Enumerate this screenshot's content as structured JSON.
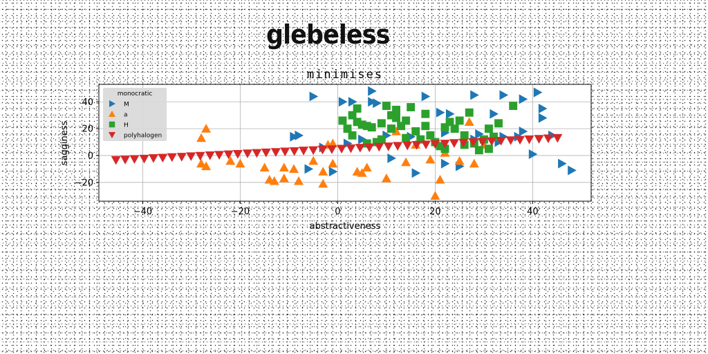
{
  "header": {
    "title": "glebeless"
  },
  "chart_data": {
    "type": "scatter",
    "title": "minimises",
    "xlabel": "abstractiveness",
    "ylabel": "sagginess",
    "xlim": [
      -49,
      52
    ],
    "ylim": [
      -34,
      53
    ],
    "xticks": [
      -40,
      -20,
      0,
      20,
      40
    ],
    "yticks": [
      -20,
      0,
      20,
      40
    ],
    "grid": true,
    "legend": {
      "title": "monocratic",
      "placement": "top-left"
    },
    "series": [
      {
        "name": "M",
        "marker": "triangle-right",
        "color": "#1f77b4",
        "points": [
          [
            -5,
            44
          ],
          [
            1,
            40
          ],
          [
            3,
            40
          ],
          [
            7,
            48
          ],
          [
            7,
            40
          ],
          [
            8,
            39
          ],
          [
            18,
            44
          ],
          [
            21,
            32
          ],
          [
            23,
            31
          ],
          [
            28,
            45
          ],
          [
            32,
            31
          ],
          [
            34,
            45
          ],
          [
            38,
            42
          ],
          [
            41,
            47
          ],
          [
            42,
            35
          ],
          [
            42,
            28
          ],
          [
            44,
            15
          ],
          [
            46,
            -6
          ],
          [
            48,
            -11
          ],
          [
            40,
            1
          ],
          [
            38,
            18
          ],
          [
            34,
            14
          ],
          [
            29,
            16
          ],
          [
            28,
            12
          ],
          [
            22,
            17
          ],
          [
            15,
            14
          ],
          [
            10,
            15
          ],
          [
            5,
            12
          ],
          [
            2,
            9
          ],
          [
            -3,
            6
          ],
          [
            -8,
            15
          ],
          [
            -9,
            14
          ],
          [
            -6,
            -10
          ],
          [
            -1,
            -12
          ],
          [
            11,
            -2
          ],
          [
            16,
            -13
          ],
          [
            22,
            -6
          ],
          [
            25,
            -8
          ],
          [
            33,
            10
          ],
          [
            37,
            14
          ]
        ]
      },
      {
        "name": "a",
        "marker": "triangle-up",
        "color": "#ff7f0e",
        "points": [
          [
            -27,
            20
          ],
          [
            -28,
            13
          ],
          [
            -28,
            -6
          ],
          [
            -27,
            -8
          ],
          [
            -22,
            -4
          ],
          [
            -20,
            -6
          ],
          [
            -15,
            -9
          ],
          [
            -14,
            -18
          ],
          [
            -13,
            -19
          ],
          [
            -11,
            -9
          ],
          [
            -11,
            -17
          ],
          [
            -9,
            -10
          ],
          [
            -8,
            -19
          ],
          [
            -5,
            -4
          ],
          [
            -3,
            -12
          ],
          [
            -3,
            -21
          ],
          [
            -1,
            -6
          ],
          [
            -2,
            8
          ],
          [
            -1,
            9
          ],
          [
            4,
            -12
          ],
          [
            5,
            -13
          ],
          [
            6,
            -9
          ],
          [
            10,
            -17
          ],
          [
            11,
            20
          ],
          [
            12,
            18
          ],
          [
            14,
            -5
          ],
          [
            16,
            8
          ],
          [
            19,
            -3
          ],
          [
            20,
            -30
          ],
          [
            21,
            -18
          ],
          [
            22,
            2
          ],
          [
            25,
            -4
          ],
          [
            27,
            25
          ],
          [
            28,
            -6
          ],
          [
            30,
            8
          ]
        ]
      },
      {
        "name": "H",
        "marker": "square",
        "color": "#2ca02c",
        "points": [
          [
            1,
            26
          ],
          [
            2,
            20
          ],
          [
            3,
            30
          ],
          [
            4,
            35
          ],
          [
            4,
            25
          ],
          [
            5,
            23
          ],
          [
            6,
            22
          ],
          [
            7,
            21
          ],
          [
            8,
            10
          ],
          [
            9,
            24
          ],
          [
            10,
            37
          ],
          [
            11,
            30
          ],
          [
            11,
            20
          ],
          [
            12,
            34
          ],
          [
            12,
            28
          ],
          [
            13,
            22
          ],
          [
            14,
            13
          ],
          [
            15,
            36
          ],
          [
            16,
            18
          ],
          [
            17,
            12
          ],
          [
            18,
            31
          ],
          [
            19,
            15
          ],
          [
            20,
            10
          ],
          [
            21,
            7
          ],
          [
            22,
            21
          ],
          [
            23,
            25
          ],
          [
            24,
            20
          ],
          [
            25,
            26
          ],
          [
            26,
            15
          ],
          [
            26,
            8
          ],
          [
            27,
            32
          ],
          [
            28,
            9
          ],
          [
            29,
            4
          ],
          [
            30,
            12
          ],
          [
            31,
            20
          ],
          [
            31,
            5
          ],
          [
            32,
            14
          ],
          [
            33,
            24
          ],
          [
            36,
            37
          ],
          [
            22,
            5
          ],
          [
            18,
            22
          ],
          [
            14,
            26
          ],
          [
            9,
            12
          ],
          [
            6,
            9
          ],
          [
            3,
            15
          ]
        ]
      },
      {
        "name": "polyhalogen",
        "marker": "triangle-down",
        "color": "#d62728",
        "points": [
          [
            -45.5,
            -3.3
          ],
          [
            -43.6,
            -3.0
          ],
          [
            -41.7,
            -2.6
          ],
          [
            -39.7,
            -2.3
          ],
          [
            -37.8,
            -1.9
          ],
          [
            -35.9,
            -1.6
          ],
          [
            -34.0,
            -1.2
          ],
          [
            -32.0,
            -0.9
          ],
          [
            -30.1,
            -0.5
          ],
          [
            -28.2,
            -0.2
          ],
          [
            -26.2,
            0.2
          ],
          [
            -24.3,
            0.5
          ],
          [
            -22.4,
            0.9
          ],
          [
            -20.5,
            1.2
          ],
          [
            -18.5,
            1.6
          ],
          [
            -16.6,
            1.9
          ],
          [
            -14.7,
            2.3
          ],
          [
            -12.7,
            2.6
          ],
          [
            -10.8,
            3.0
          ],
          [
            -8.9,
            3.3
          ],
          [
            -7.0,
            3.7
          ],
          [
            -5.0,
            4.0
          ],
          [
            -3.1,
            4.4
          ],
          [
            -1.2,
            4.7
          ],
          [
            0.8,
            5.1
          ],
          [
            2.7,
            5.4
          ],
          [
            4.6,
            5.8
          ],
          [
            6.5,
            6.1
          ],
          [
            8.5,
            6.5
          ],
          [
            10.4,
            6.8
          ],
          [
            12.3,
            7.2
          ],
          [
            14.3,
            7.5
          ],
          [
            16.2,
            7.9
          ],
          [
            18.1,
            8.2
          ],
          [
            20.0,
            8.6
          ],
          [
            22.0,
            8.9
          ],
          [
            23.9,
            9.3
          ],
          [
            25.8,
            9.6
          ],
          [
            27.8,
            10.0
          ],
          [
            29.7,
            10.3
          ],
          [
            31.6,
            10.7
          ],
          [
            33.5,
            11.0
          ],
          [
            35.5,
            11.4
          ],
          [
            37.4,
            11.7
          ],
          [
            39.3,
            12.1
          ],
          [
            41.3,
            12.4
          ],
          [
            43.2,
            12.8
          ],
          [
            45.1,
            13.1
          ]
        ]
      }
    ]
  }
}
